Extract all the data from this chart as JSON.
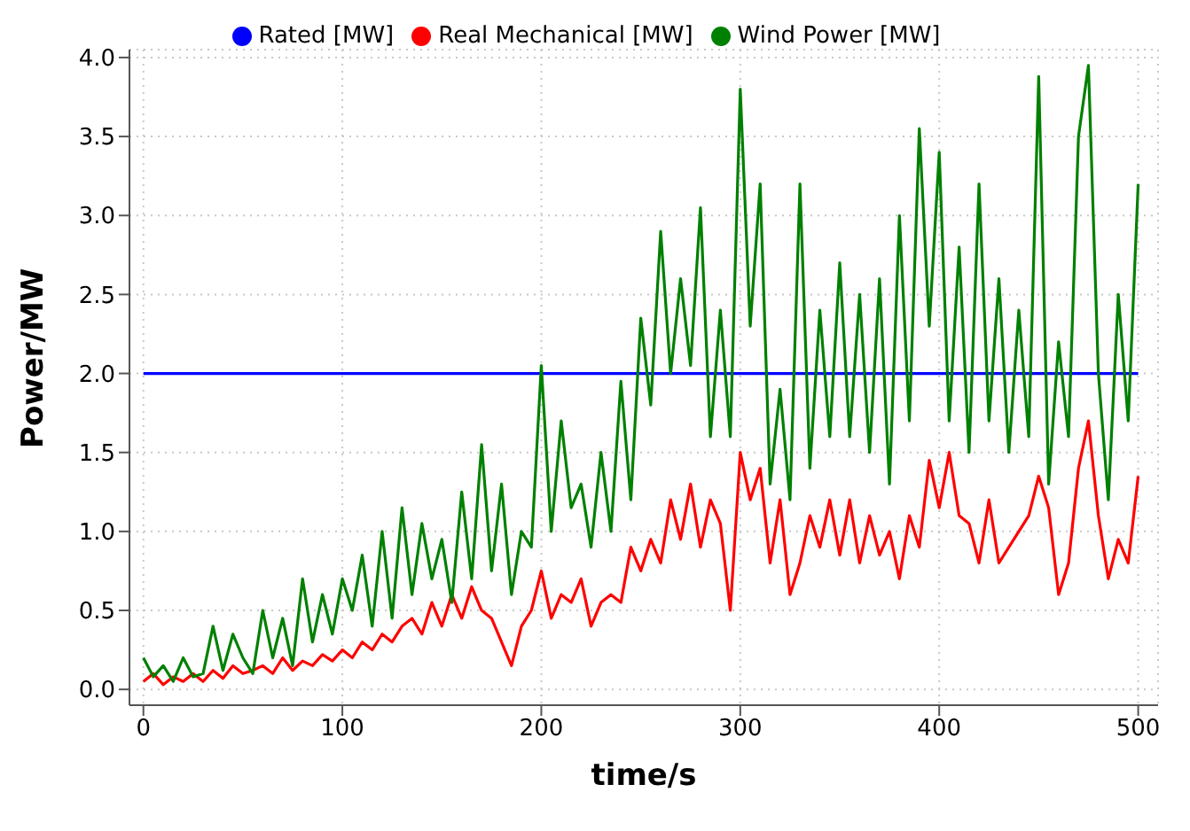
{
  "chart_data": {
    "type": "line",
    "xlabel": "time/s",
    "ylabel": "Power/MW",
    "xlim": [
      -7,
      510
    ],
    "ylim": [
      -0.1,
      4.05
    ],
    "xticks": [
      0,
      100,
      200,
      300,
      400,
      500
    ],
    "yticks": [
      {
        "value": 0,
        "label": "0.0"
      },
      {
        "value": 0.5,
        "label": "0.5"
      },
      {
        "value": 1,
        "label": "1.0"
      },
      {
        "value": 1.5,
        "label": "1.5"
      },
      {
        "value": 2,
        "label": "2.0"
      },
      {
        "value": 2.5,
        "label": "2.5"
      },
      {
        "value": 3,
        "label": "3.0"
      },
      {
        "value": 3.5,
        "label": "3.5"
      },
      {
        "value": 4,
        "label": "4.0"
      }
    ],
    "grid": true,
    "legend": "top",
    "marker": "none",
    "line_style": "solid",
    "series": [
      {
        "name": "Rated [MW]",
        "color": "#0000ff",
        "x": [
          0,
          500
        ],
        "values": [
          2,
          2
        ]
      },
      {
        "name": "Real Mechanical  [MW]",
        "color": "#ff0000",
        "x": [
          0,
          5,
          10,
          15,
          20,
          25,
          30,
          35,
          40,
          45,
          50,
          55,
          60,
          65,
          70,
          75,
          80,
          85,
          90,
          95,
          100,
          105,
          110,
          115,
          120,
          125,
          130,
          135,
          140,
          145,
          150,
          155,
          160,
          165,
          170,
          175,
          180,
          185,
          190,
          195,
          200,
          205,
          210,
          215,
          220,
          225,
          230,
          235,
          240,
          245,
          250,
          255,
          260,
          265,
          270,
          275,
          280,
          285,
          290,
          295,
          300,
          305,
          310,
          315,
          320,
          325,
          330,
          335,
          340,
          345,
          350,
          355,
          360,
          365,
          370,
          375,
          380,
          385,
          390,
          395,
          400,
          405,
          410,
          415,
          420,
          425,
          430,
          435,
          440,
          445,
          450,
          455,
          460,
          465,
          470,
          475,
          480,
          485,
          490,
          495,
          500
        ],
        "values": [
          0.05,
          0.1,
          0.03,
          0.08,
          0.05,
          0.1,
          0.05,
          0.12,
          0.07,
          0.15,
          0.1,
          0.12,
          0.15,
          0.1,
          0.2,
          0.12,
          0.18,
          0.15,
          0.22,
          0.18,
          0.25,
          0.2,
          0.3,
          0.25,
          0.35,
          0.3,
          0.4,
          0.45,
          0.35,
          0.55,
          0.4,
          0.6,
          0.45,
          0.65,
          0.5,
          0.45,
          0.3,
          0.15,
          0.4,
          0.5,
          0.75,
          0.45,
          0.6,
          0.55,
          0.7,
          0.4,
          0.55,
          0.6,
          0.55,
          0.9,
          0.75,
          0.95,
          0.8,
          1.2,
          0.95,
          1.3,
          0.9,
          1.2,
          1.05,
          0.5,
          1.5,
          1.2,
          1.4,
          0.8,
          1.2,
          0.6,
          0.8,
          1.1,
          0.9,
          1.2,
          0.85,
          1.2,
          0.8,
          1.1,
          0.85,
          1.0,
          0.7,
          1.1,
          0.9,
          1.45,
          1.15,
          1.5,
          1.1,
          1.05,
          0.8,
          1.2,
          0.8,
          0.9,
          1.0,
          1.1,
          1.35,
          1.15,
          0.6,
          0.8,
          1.4,
          1.7,
          1.1,
          0.7,
          0.95,
          0.8,
          1.35
        ]
      },
      {
        "name": "Wind Power [MW]",
        "color": "#008000",
        "x": [
          0,
          5,
          10,
          15,
          20,
          25,
          30,
          35,
          40,
          45,
          50,
          55,
          60,
          65,
          70,
          75,
          80,
          85,
          90,
          95,
          100,
          105,
          110,
          115,
          120,
          125,
          130,
          135,
          140,
          145,
          150,
          155,
          160,
          165,
          170,
          175,
          180,
          185,
          190,
          195,
          200,
          205,
          210,
          215,
          220,
          225,
          230,
          235,
          240,
          245,
          250,
          255,
          260,
          265,
          270,
          275,
          280,
          285,
          290,
          295,
          300,
          305,
          310,
          315,
          320,
          325,
          330,
          335,
          340,
          345,
          350,
          355,
          360,
          365,
          370,
          375,
          380,
          385,
          390,
          395,
          400,
          405,
          410,
          415,
          420,
          425,
          430,
          435,
          440,
          445,
          450,
          455,
          460,
          465,
          470,
          475,
          480,
          485,
          490,
          495,
          500
        ],
        "values": [
          0.2,
          0.08,
          0.15,
          0.05,
          0.2,
          0.08,
          0.1,
          0.4,
          0.12,
          0.35,
          0.2,
          0.1,
          0.5,
          0.2,
          0.45,
          0.15,
          0.7,
          0.3,
          0.6,
          0.35,
          0.7,
          0.5,
          0.85,
          0.4,
          1.0,
          0.45,
          1.15,
          0.6,
          1.05,
          0.7,
          0.95,
          0.55,
          1.25,
          0.7,
          1.55,
          0.75,
          1.3,
          0.6,
          1.0,
          0.9,
          2.05,
          1.0,
          1.7,
          1.15,
          1.3,
          0.9,
          1.5,
          1.0,
          1.95,
          1.2,
          2.35,
          1.8,
          2.9,
          2.0,
          2.6,
          2.05,
          3.05,
          1.6,
          2.4,
          1.6,
          3.8,
          2.3,
          3.2,
          1.3,
          1.9,
          1.2,
          3.2,
          1.4,
          2.4,
          1.6,
          2.7,
          1.6,
          2.5,
          1.5,
          2.6,
          1.3,
          3.0,
          1.7,
          3.55,
          2.3,
          3.4,
          1.7,
          2.8,
          1.5,
          3.2,
          1.7,
          2.6,
          1.5,
          2.4,
          1.6,
          3.88,
          1.3,
          2.2,
          1.6,
          3.5,
          3.95,
          2.0,
          1.2,
          2.5,
          1.7,
          3.2
        ]
      }
    ]
  }
}
